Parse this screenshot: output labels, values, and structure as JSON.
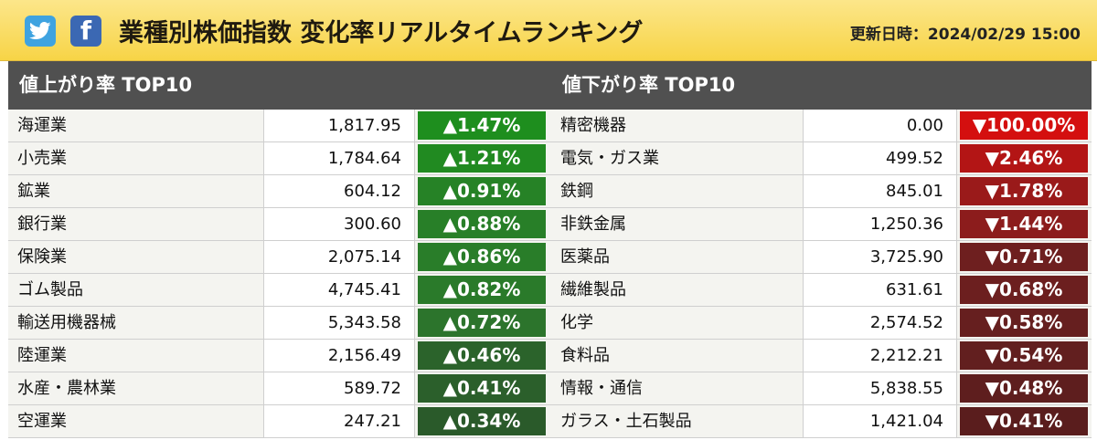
{
  "header": {
    "title": "業種別株価指数 変化率リアルタイムランキング",
    "updated": "更新日時：2024/02/29 15:00",
    "icons": [
      "twitter-icon",
      "facebook-icon"
    ]
  },
  "up_panel": {
    "title": "値上がり率 TOP10",
    "rows": [
      {
        "name": "海運業",
        "price": "1,817.95",
        "rate": "▲1.47%",
        "color": "#1e8e1e"
      },
      {
        "name": "小売業",
        "price": "1,784.64",
        "rate": "▲1.21%",
        "color": "#218a21"
      },
      {
        "name": "鉱業",
        "price": "604.12",
        "rate": "▲0.91%",
        "color": "#268226"
      },
      {
        "name": "銀行業",
        "price": "300.60",
        "rate": "▲0.88%",
        "color": "#287f28"
      },
      {
        "name": "保険業",
        "price": "2,075.14",
        "rate": "▲0.86%",
        "color": "#297d29"
      },
      {
        "name": "ゴム製品",
        "price": "4,745.41",
        "rate": "▲0.82%",
        "color": "#2a7a2a"
      },
      {
        "name": "輸送用機器械",
        "price": "5,343.58",
        "rate": "▲0.72%",
        "color": "#2c742c"
      },
      {
        "name": "陸運業",
        "price": "2,156.49",
        "rate": "▲0.46%",
        "color": "#2b632b"
      },
      {
        "name": "水産・農林業",
        "price": "589.72",
        "rate": "▲0.41%",
        "color": "#2b5f2b"
      },
      {
        "name": "空運業",
        "price": "247.21",
        "rate": "▲0.34%",
        "color": "#2a5a2a"
      }
    ]
  },
  "down_panel": {
    "title": "値下がり率 TOP10",
    "rows": [
      {
        "name": "精密機器",
        "price": "0.00",
        "rate": "▼100.00%",
        "color": "#d40f0f"
      },
      {
        "name": "電気・ガス業",
        "price": "499.52",
        "rate": "▼2.46%",
        "color": "#b31515"
      },
      {
        "name": "鉄鋼",
        "price": "845.01",
        "rate": "▼1.78%",
        "color": "#9a1a1a"
      },
      {
        "name": "非鉄金属",
        "price": "1,250.36",
        "rate": "▼1.44%",
        "color": "#8c1c1c"
      },
      {
        "name": "医薬品",
        "price": "3,725.90",
        "rate": "▼0.71%",
        "color": "#6e1f1f"
      },
      {
        "name": "繊維製品",
        "price": "631.61",
        "rate": "▼0.68%",
        "color": "#6c1f1f"
      },
      {
        "name": "化学",
        "price": "2,574.52",
        "rate": "▼0.58%",
        "color": "#661f1f"
      },
      {
        "name": "食料品",
        "price": "2,212.21",
        "rate": "▼0.54%",
        "color": "#621f1f"
      },
      {
        "name": "情報・通信",
        "price": "5,838.55",
        "rate": "▼0.48%",
        "color": "#5e1e1e"
      },
      {
        "name": "ガラス・土石製品",
        "price": "1,421.04",
        "rate": "▼0.41%",
        "color": "#5a1d1d"
      }
    ]
  }
}
